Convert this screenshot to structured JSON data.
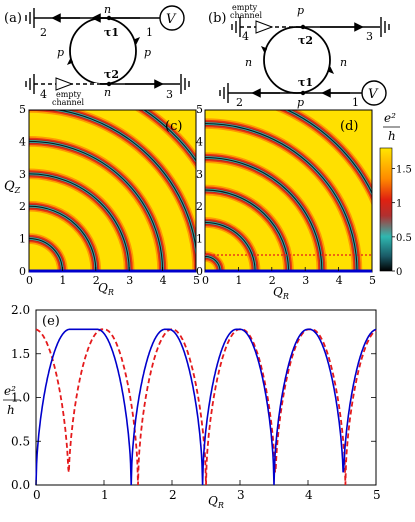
{
  "panels": {
    "a": {
      "tag": "(a)",
      "terminals": [
        "2",
        "1",
        "4",
        "3"
      ],
      "source": "V",
      "regions": {
        "top": "n",
        "left": "p",
        "right": "p",
        "bottom": "n"
      },
      "tau_top": "τ1",
      "tau_bottom": "τ2",
      "empty_channel": [
        "empty",
        "channel"
      ]
    },
    "b": {
      "tag": "(b)",
      "terminals": [
        "4",
        "3",
        "2",
        "1"
      ],
      "source": "V",
      "regions": {
        "top": "p",
        "left": "n",
        "right": "n",
        "bottom": "p"
      },
      "tau_top": "τ2",
      "tau_bottom": "τ1",
      "empty_channel": [
        "empty",
        "channel"
      ]
    }
  },
  "heatmaps": {
    "c": {
      "tag": "(c)",
      "xlabel": "QR",
      "ylabel": "QZ",
      "ticks": [
        "0",
        "1",
        "2",
        "3",
        "4",
        "5"
      ],
      "xlim": [
        0,
        5
      ],
      "ylim": [
        0,
        5
      ]
    },
    "d": {
      "tag": "(d)",
      "xlabel": "QR",
      "ticks": [
        "0",
        "1",
        "2",
        "3",
        "4",
        "5"
      ],
      "xlim": [
        0,
        5
      ],
      "ylim": [
        0,
        5
      ]
    },
    "colorbar": {
      "unit_num": "e²",
      "unit_den": "h",
      "ticks": [
        "1.5",
        "1",
        "0.5",
        "0"
      ],
      "tick_values": [
        1.5,
        1,
        0.5,
        0
      ],
      "range": [
        0,
        1.8
      ],
      "colors": [
        "#000000",
        "#2fb8b0",
        "#d61818",
        "#ff8c00",
        "#ffe000"
      ]
    }
  },
  "chart_data": {
    "type": "line",
    "tag": "(e)",
    "xlabel": "QR",
    "ylabel_num": "e²",
    "ylabel_den": "h",
    "xlim": [
      0,
      5
    ],
    "ylim": [
      0,
      2.0
    ],
    "xticks": [
      "0",
      "1",
      "2",
      "3",
      "4",
      "5"
    ],
    "yticks": [
      "0.0",
      "0.5",
      "1.0",
      "1.5",
      "2.0"
    ],
    "series": [
      {
        "style": "solid",
        "color": "#0000cc",
        "zeros": [
          0,
          1.4,
          2.45,
          3.5,
          4.52
        ],
        "peaks": [
          0.85,
          1.95,
          2.98,
          4.02,
          5.0
        ],
        "max": 1.78
      },
      {
        "style": "dashed",
        "color": "#e41a1c",
        "zeros": [
          0.48,
          1.5,
          2.5,
          3.52,
          4.55
        ],
        "peaks": [
          0.0,
          1.05,
          2.05,
          3.05,
          4.08,
          5.0
        ],
        "max": 1.78
      }
    ]
  },
  "colors": {
    "solid_line": "#0000cc",
    "dashed_line": "#e41a1c",
    "wire": "#000000"
  }
}
